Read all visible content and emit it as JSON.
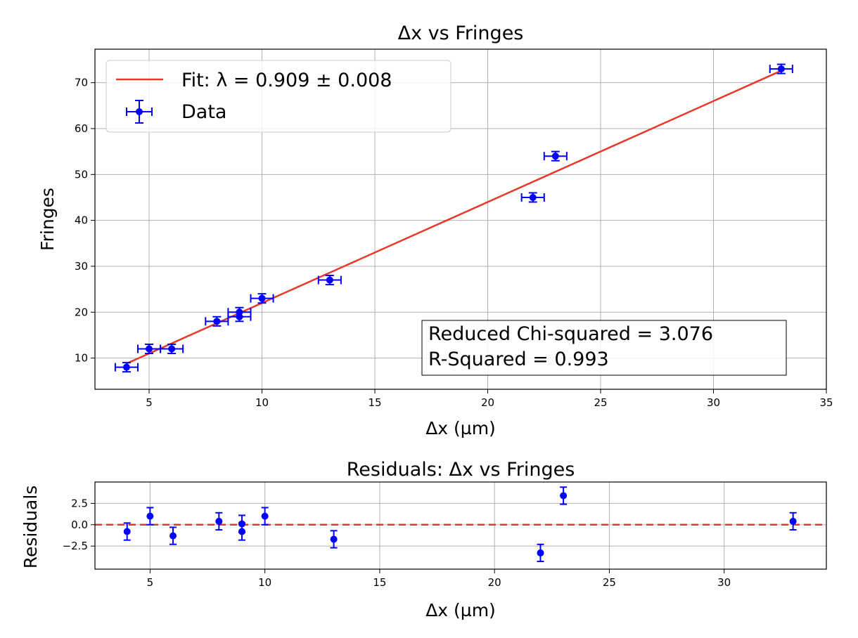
{
  "chart_data": [
    {
      "type": "scatter",
      "title": "Δx vs Fringes",
      "xlabel": "Δx (µm)",
      "ylabel": "Fringes",
      "xlim": [
        2.6,
        35
      ],
      "ylim": [
        3.2,
        77.3
      ],
      "xticks": [
        5,
        10,
        15,
        20,
        25,
        30,
        35
      ],
      "yticks": [
        10,
        20,
        30,
        40,
        50,
        60,
        70
      ],
      "grid": true,
      "legend_position": "top-left",
      "series": [
        {
          "name": "Fit: λ = 0.909 ± 0.008",
          "kind": "line",
          "color": "#e8382a",
          "x": [
            4,
            33
          ],
          "y": [
            8.8,
            72.6
          ]
        },
        {
          "name": "Data",
          "kind": "errorbar",
          "color": "#0000ff",
          "x": [
            4,
            5,
            6,
            8,
            9,
            9,
            10,
            13,
            22,
            23,
            33
          ],
          "y": [
            8,
            12,
            12,
            18,
            19,
            20,
            23,
            27,
            45,
            54,
            73
          ],
          "xerr": 0.5,
          "yerr": 1
        }
      ],
      "annotations": [
        "Reduced Chi-squared = 3.076",
        "R-Squared = 0.993"
      ]
    },
    {
      "type": "scatter",
      "title": "Residuals: Δx vs Fringes",
      "xlabel": "Δx (µm)",
      "ylabel": "Residuals",
      "xlim": [
        2.6,
        34.45
      ],
      "ylim": [
        -5.2,
        5
      ],
      "xticks": [
        5,
        10,
        15,
        20,
        25,
        30
      ],
      "yticks": [
        2.5,
        0.0,
        -2.5
      ],
      "ytick_labels": [
        "2.5",
        "0.0",
        "−2.5"
      ],
      "grid": true,
      "zero_line": {
        "y": 0,
        "style": "dashed",
        "color": "#e8382a"
      },
      "series": [
        {
          "kind": "errorbar",
          "color": "#0000ff",
          "x": [
            4,
            5,
            6,
            8,
            9,
            9,
            10,
            13,
            22,
            23,
            33
          ],
          "y": [
            -0.8,
            1.0,
            -1.3,
            0.4,
            0.1,
            -0.8,
            1.0,
            -1.7,
            -3.3,
            3.4,
            0.4
          ],
          "yerr": 1
        }
      ]
    }
  ]
}
